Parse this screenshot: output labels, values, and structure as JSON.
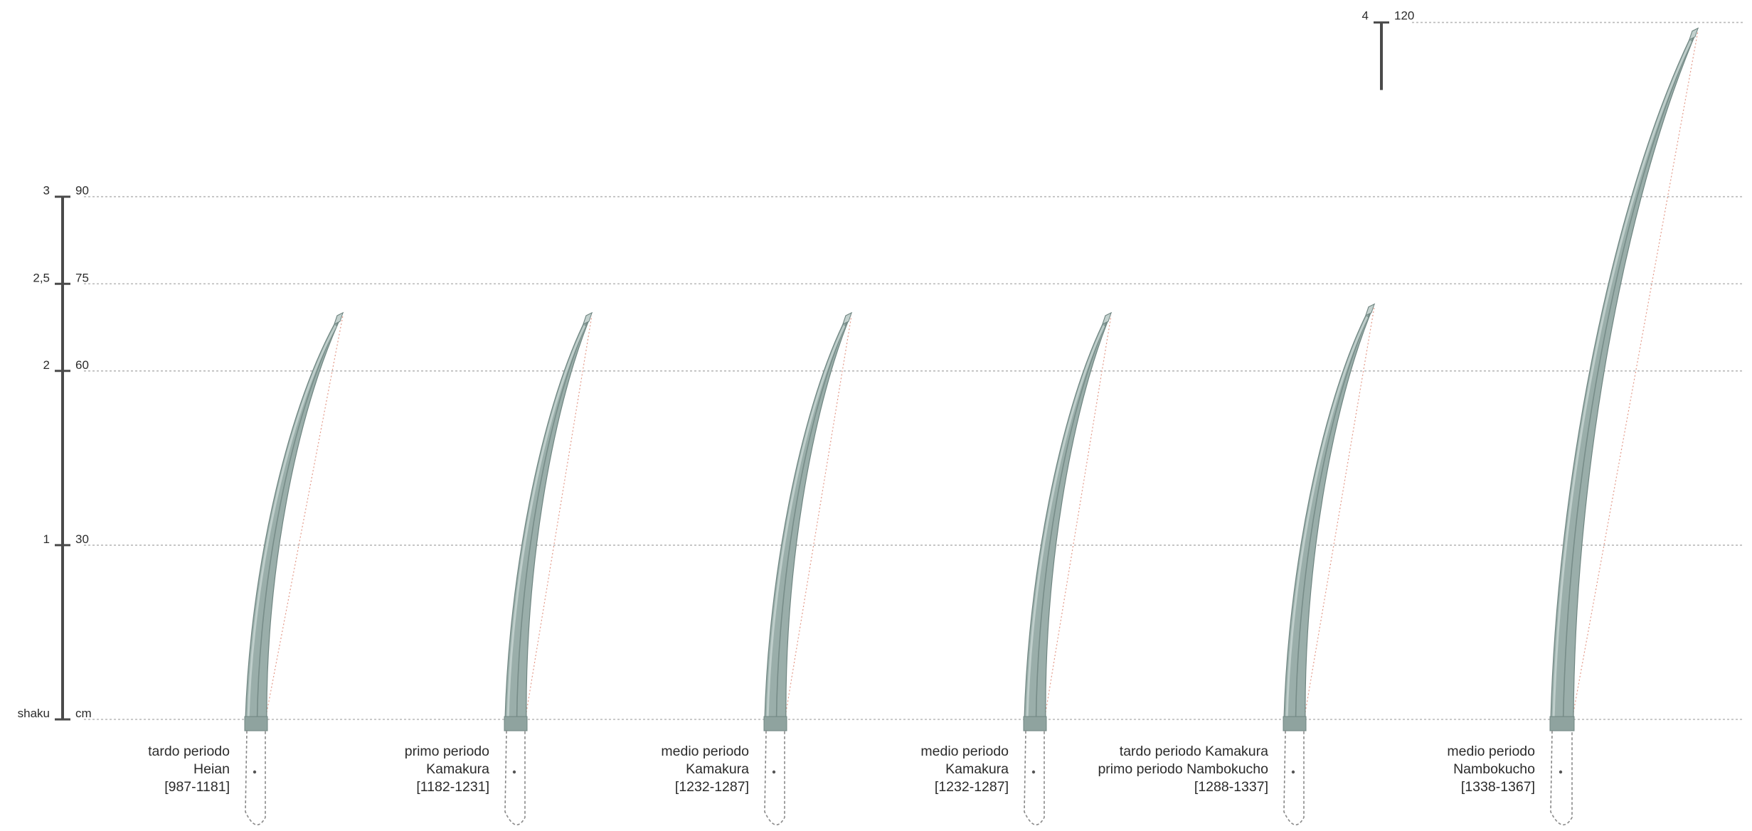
{
  "scale": {
    "units_left": "shaku",
    "units_right": "cm",
    "marks": [
      {
        "shaku": "3",
        "cm": "90",
        "value_cm": 90
      },
      {
        "shaku": "2,5",
        "cm": "75",
        "value_cm": 75
      },
      {
        "shaku": "2",
        "cm": "60",
        "value_cm": 60
      },
      {
        "shaku": "1",
        "cm": "30",
        "value_cm": 30
      }
    ],
    "extra_mark": {
      "shaku": "4",
      "cm": "120",
      "value_cm": 120
    }
  },
  "blades": [
    {
      "caption": [
        "tardo periodo",
        "Heian",
        "[987-1181]"
      ],
      "length_cm": 70
    },
    {
      "caption": [
        "primo periodo",
        "Kamakura",
        "[1182-1231]"
      ],
      "length_cm": 70
    },
    {
      "caption": [
        "medio periodo",
        "Kamakura",
        "[1232-1287]"
      ],
      "length_cm": 70
    },
    {
      "caption": [
        "medio periodo",
        "Kamakura",
        "[1232-1287]"
      ],
      "length_cm": 70
    },
    {
      "caption": [
        "tardo periodo Kamakura",
        "primo periodo Nambokucho",
        "[1288-1337]"
      ],
      "length_cm": 71.5
    },
    {
      "caption": [
        "medio periodo",
        "Nambokucho"
      ],
      "caption_extra": "[1338-1367]",
      "length_cm": 119
    }
  ],
  "colors": {
    "blade_fill": "#9aaeaa",
    "blade_dark": "#6f8581",
    "blade_light": "#c3d1ce",
    "gridline": "#b9b9b9",
    "chord": "#e39a8a",
    "scale_bar": "#4a4a4a"
  }
}
